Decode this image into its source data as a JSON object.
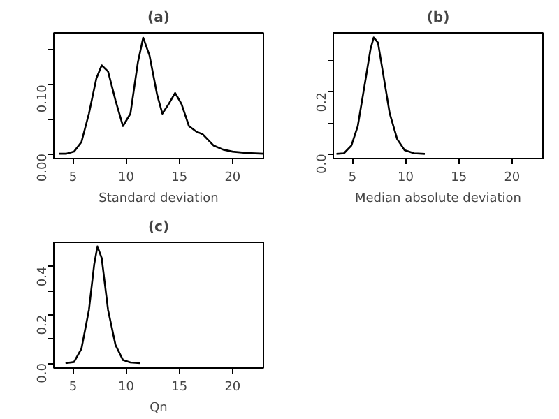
{
  "chart_data": [
    {
      "type": "line",
      "title": "(a)",
      "xlabel": "Standard deviation",
      "color": "#000000",
      "x": [
        3.7,
        4.4,
        5.1,
        5.8,
        6.5,
        7.2,
        7.7,
        8.3,
        9.0,
        9.7,
        10.4,
        11.1,
        11.6,
        12.2,
        12.9,
        13.4,
        14.0,
        14.6,
        15.2,
        15.9,
        16.6,
        17.2,
        18.2,
        19.1,
        20.0,
        21.4,
        22.9
      ],
      "values": [
        0,
        0,
        0.003,
        0.017,
        0.058,
        0.109,
        0.128,
        0.119,
        0.077,
        0.04,
        0.058,
        0.132,
        0.168,
        0.142,
        0.086,
        0.058,
        0.072,
        0.088,
        0.072,
        0.04,
        0.032,
        0.028,
        0.012,
        0.006,
        0.003,
        0.001,
        0
      ],
      "xlim": [
        3.2,
        22.9
      ],
      "ylim": [
        -0.007,
        0.175
      ],
      "xticks": [
        5,
        10,
        15,
        20
      ],
      "yticks": [
        {
          "value": 0,
          "label": "0.00"
        },
        {
          "value": 0.05,
          "label": null
        },
        {
          "value": 0.1,
          "label": "0.10"
        },
        {
          "value": 0.15,
          "label": null
        }
      ],
      "grid": false
    },
    {
      "type": "line",
      "title": "(b)",
      "xlabel": "Median absolute deviation",
      "color": "#000000",
      "x": [
        3.5,
        4.2,
        4.9,
        5.5,
        6.2,
        6.7,
        7.0,
        7.4,
        7.8,
        8.5,
        9.2,
        9.9,
        10.8,
        11.8
      ],
      "values": [
        0,
        0.002,
        0.027,
        0.09,
        0.235,
        0.34,
        0.377,
        0.36,
        0.277,
        0.131,
        0.048,
        0.012,
        0.002,
        0
      ],
      "xlim": [
        3.2,
        22.9
      ],
      "ylim": [
        -0.015,
        0.392
      ],
      "xticks": [
        5,
        10,
        15,
        20
      ],
      "yticks": [
        {
          "value": 0,
          "label": "0.0"
        },
        {
          "value": 0.1,
          "label": null
        },
        {
          "value": 0.2,
          "label": "0.2"
        },
        {
          "value": 0.3,
          "label": null
        }
      ],
      "grid": false
    },
    {
      "type": "line",
      "title": "(c)",
      "xlabel": "Qn",
      "color": "#000000",
      "x": [
        4.3,
        5.1,
        5.8,
        6.5,
        7.0,
        7.3,
        7.7,
        8.3,
        9.0,
        9.7,
        10.4,
        11.3
      ],
      "values": [
        0,
        0.005,
        0.06,
        0.22,
        0.41,
        0.483,
        0.435,
        0.22,
        0.075,
        0.013,
        0.003,
        0
      ],
      "xlim": [
        3.2,
        22.9
      ],
      "ylim": [
        -0.02,
        0.5
      ],
      "xticks": [
        5,
        10,
        15,
        20
      ],
      "yticks": [
        {
          "value": 0,
          "label": "0.0"
        },
        {
          "value": 0.1,
          "label": null
        },
        {
          "value": 0.2,
          "label": "0.2"
        },
        {
          "value": 0.3,
          "label": null
        },
        {
          "value": 0.4,
          "label": "0.4"
        }
      ],
      "grid": false
    }
  ]
}
